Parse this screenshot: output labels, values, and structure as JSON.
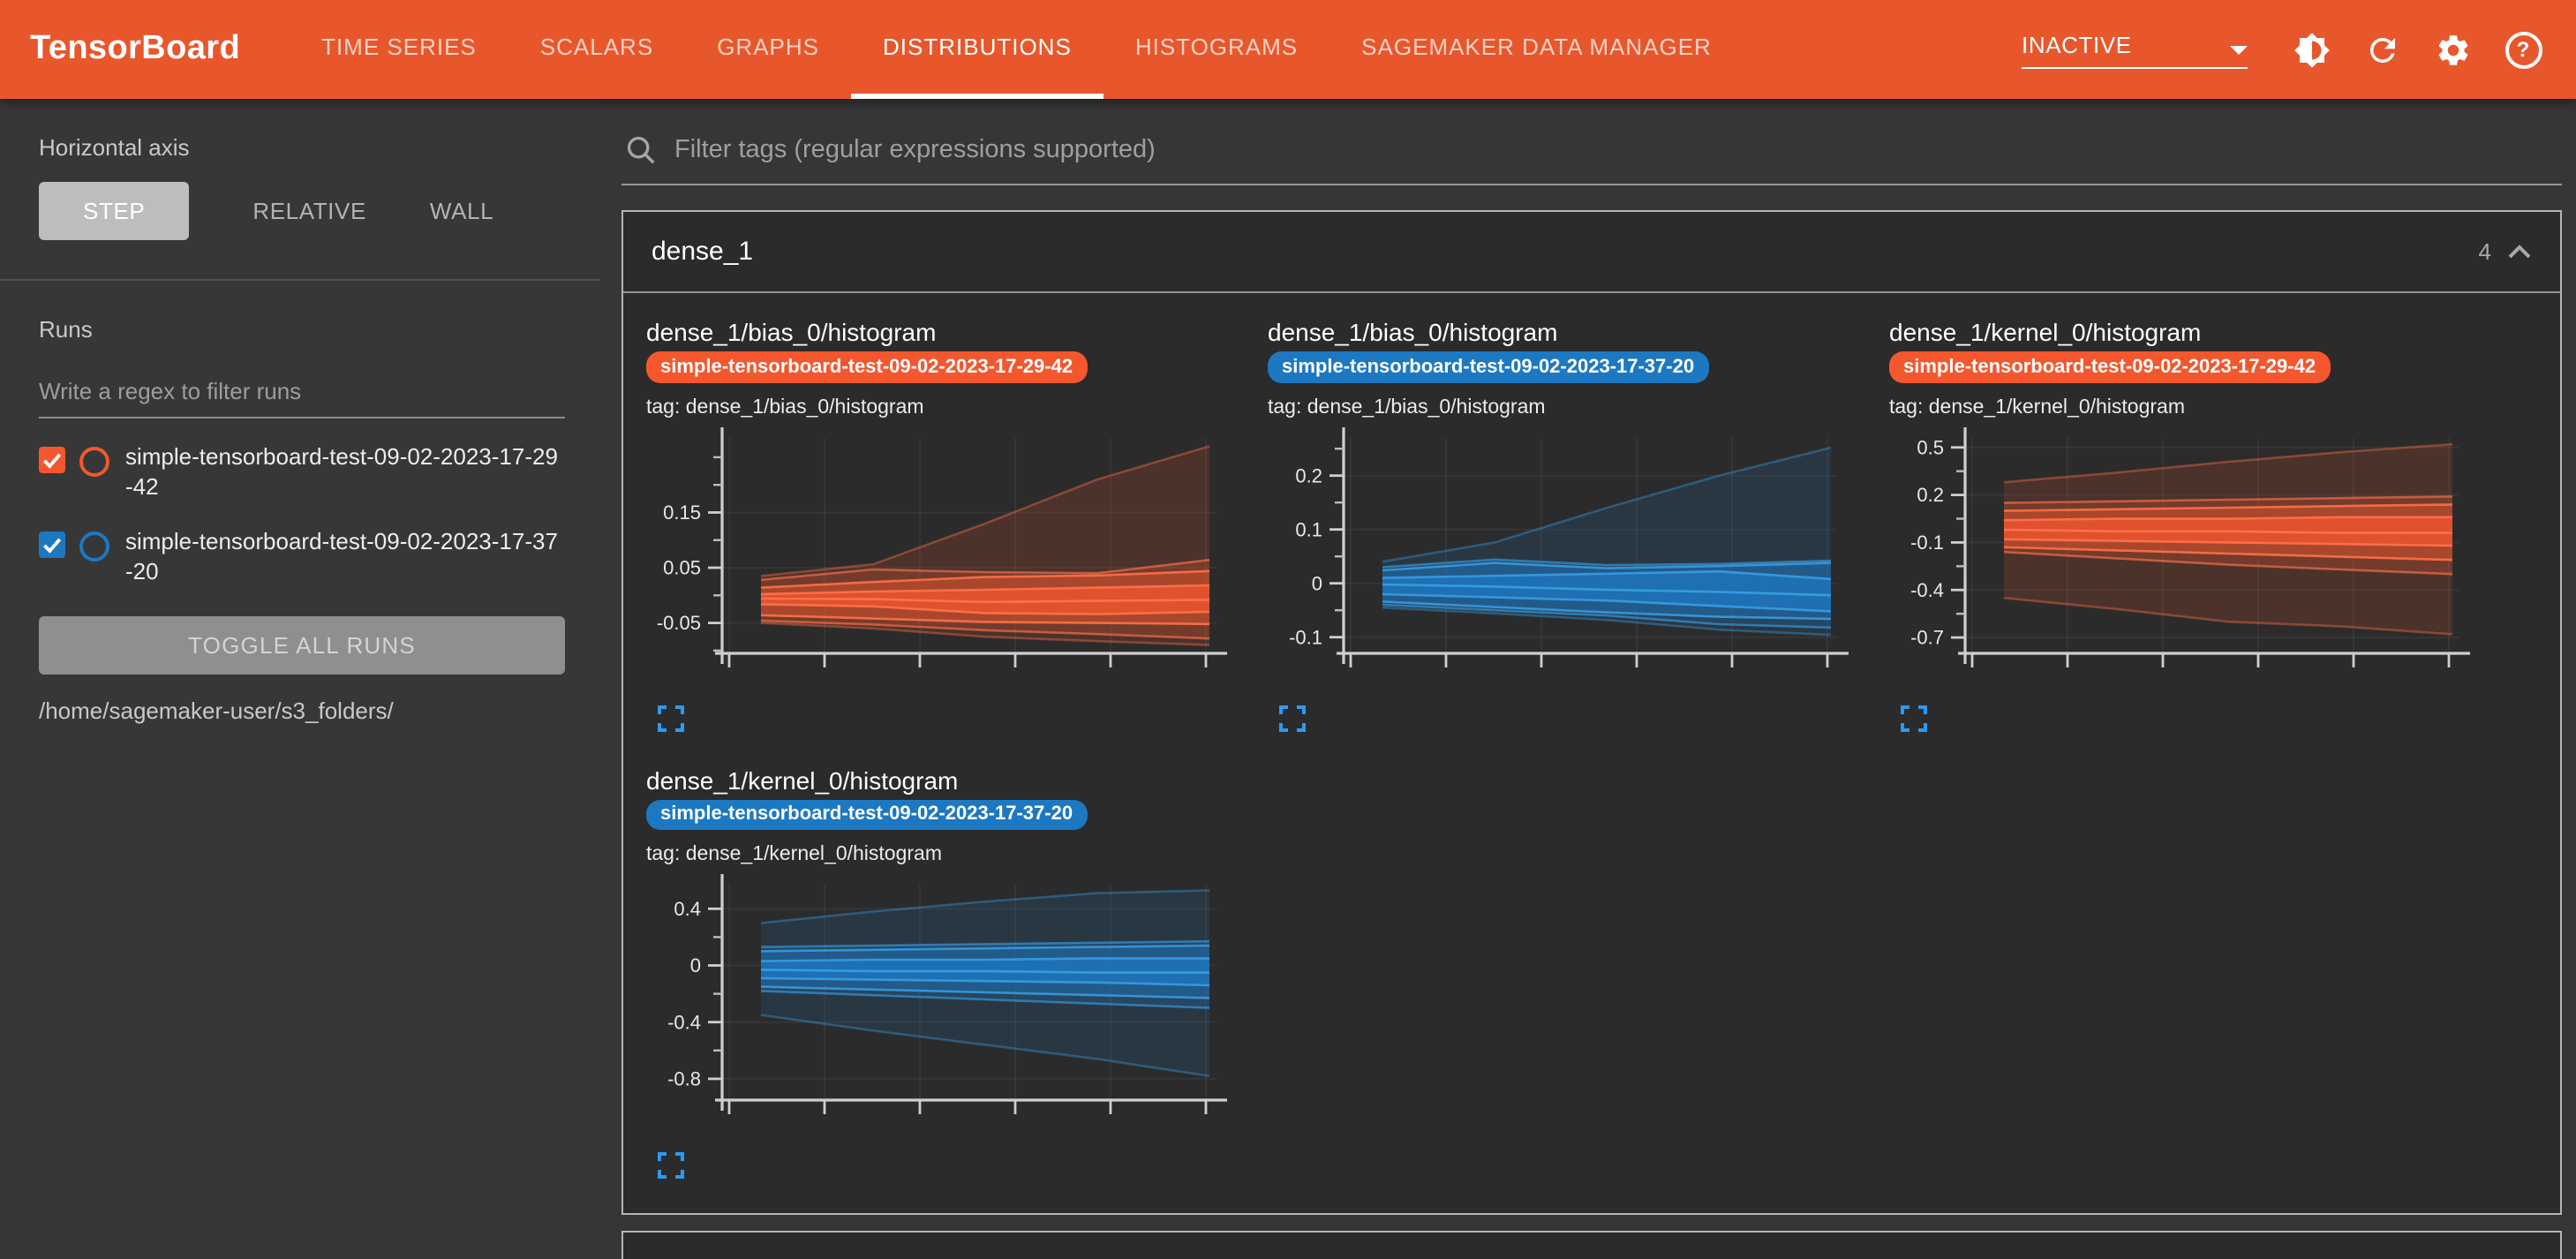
{
  "header": {
    "logo": "TensorBoard",
    "tabs": [
      {
        "label": "TIME SERIES",
        "active": false
      },
      {
        "label": "SCALARS",
        "active": false
      },
      {
        "label": "GRAPHS",
        "active": false
      },
      {
        "label": "DISTRIBUTIONS",
        "active": true
      },
      {
        "label": "HISTOGRAMS",
        "active": false
      },
      {
        "label": "SAGEMAKER DATA MANAGER",
        "active": false
      }
    ],
    "status": "INACTIVE",
    "help_glyph": "?"
  },
  "sidebar": {
    "horizontal_axis": {
      "label": "Horizontal axis",
      "options": [
        "STEP",
        "RELATIVE",
        "WALL"
      ],
      "selected": "STEP"
    },
    "runs": {
      "title": "Runs",
      "filter_placeholder": "Write a regex to filter runs",
      "items": [
        {
          "name": "simple-tensorboard-test-09-02-2023-17-29-42",
          "color": "#f4572e",
          "checked": true
        },
        {
          "name": "simple-tensorboard-test-09-02-2023-17-37-20",
          "color": "#1d78c2",
          "checked": true
        }
      ],
      "toggle_button": "TOGGLE ALL RUNS",
      "log_path": "/home/sagemaker-user/s3_folders/"
    }
  },
  "main": {
    "filter_placeholder": "Filter tags (regular expressions supported)",
    "group": {
      "title": "dense_1",
      "count": "4"
    }
  },
  "colors": {
    "header_orange": "#e8572c",
    "run_orange": "#f4572e",
    "run_blue": "#1d78c2",
    "expand_icon_blue": "#2b9af3"
  },
  "chart_data": [
    {
      "type": "area",
      "title": "dense_1/bias_0/histogram",
      "run": "simple-tensorboard-test-09-02-2023-17-29-42",
      "tag_label": "tag: dense_1/bias_0/histogram",
      "run_color": "#f4572e",
      "line_color": "#ff7048",
      "legend": "none",
      "grid": "faint",
      "x": [
        0,
        1,
        2,
        3,
        4
      ],
      "x_tick_labels": [],
      "ylim": [
        -0.105,
        0.285
      ],
      "yticks_major": [
        [
          0.15,
          "0.15"
        ],
        [
          0.05,
          "0.05"
        ],
        [
          -0.05,
          "-0.05"
        ]
      ],
      "yticks_minor": [
        0.25,
        0.2,
        0.1,
        0,
        -0.1
      ],
      "series": {
        "min": [
          -0.05,
          -0.06,
          -0.075,
          -0.083,
          -0.09
        ],
        "p7": [
          -0.046,
          -0.053,
          -0.063,
          -0.07,
          -0.078
        ],
        "p16": [
          -0.036,
          -0.042,
          -0.048,
          -0.05,
          -0.052
        ],
        "p31": [
          -0.016,
          -0.02,
          -0.032,
          -0.034,
          -0.03
        ],
        "p50": [
          -0.006,
          -0.007,
          -0.012,
          -0.01,
          -0.008
        ],
        "p69": [
          0.002,
          0.007,
          0.01,
          0.014,
          0.018
        ],
        "p84": [
          0.014,
          0.024,
          0.033,
          0.036,
          0.044
        ],
        "p93": [
          0.028,
          0.047,
          0.042,
          0.04,
          0.064
        ],
        "max": [
          0.035,
          0.056,
          0.13,
          0.21,
          0.27
        ]
      }
    },
    {
      "type": "area",
      "title": "dense_1/bias_0/histogram",
      "run": "simple-tensorboard-test-09-02-2023-17-37-20",
      "tag_label": "tag: dense_1/bias_0/histogram",
      "run_color": "#1d78c2",
      "line_color": "#379ae0",
      "legend": "none",
      "grid": "faint",
      "x": [
        0,
        1,
        2,
        3,
        4
      ],
      "x_tick_labels": [],
      "ylim": [
        -0.13,
        0.27
      ],
      "yticks_major": [
        [
          0.2,
          "0.2"
        ],
        [
          0.1,
          "0.1"
        ],
        [
          0,
          "0"
        ],
        [
          -0.1,
          "-0.1"
        ]
      ],
      "yticks_minor": [
        0.25,
        0.15,
        0.05,
        -0.05
      ],
      "series": {
        "min": [
          -0.045,
          -0.056,
          -0.068,
          -0.086,
          -0.096
        ],
        "p7": [
          -0.04,
          -0.05,
          -0.06,
          -0.076,
          -0.082
        ],
        "p16": [
          -0.034,
          -0.044,
          -0.054,
          -0.062,
          -0.066
        ],
        "p31": [
          -0.02,
          -0.026,
          -0.032,
          -0.042,
          -0.052
        ],
        "p50": [
          -0.002,
          -0.006,
          -0.012,
          -0.016,
          -0.022
        ],
        "p69": [
          0.01,
          0.014,
          0.018,
          0.022,
          0.008
        ],
        "p84": [
          0.024,
          0.038,
          0.028,
          0.032,
          0.038
        ],
        "p93": [
          0.03,
          0.044,
          0.034,
          0.036,
          0.042
        ],
        "max": [
          0.04,
          0.076,
          0.14,
          0.2,
          0.252
        ]
      }
    },
    {
      "type": "area",
      "title": "dense_1/kernel_0/histogram",
      "run": "simple-tensorboard-test-09-02-2023-17-29-42",
      "tag_label": "tag: dense_1/kernel_0/histogram",
      "run_color": "#f4572e",
      "line_color": "#ff7048",
      "legend": "none",
      "grid": "faint",
      "x": [
        0,
        1,
        2,
        3,
        4
      ],
      "x_tick_labels": [],
      "ylim": [
        -0.8,
        0.56
      ],
      "yticks_major": [
        [
          0.5,
          "0.5"
        ],
        [
          0.2,
          "0.2"
        ],
        [
          -0.1,
          "-0.1"
        ],
        [
          -0.4,
          "-0.4"
        ],
        [
          -0.7,
          "-0.7"
        ]
      ],
      "yticks_minor": [
        0.35,
        0.05,
        -0.25,
        -0.55
      ],
      "series": {
        "min": [
          -0.45,
          -0.52,
          -0.6,
          -0.63,
          -0.68
        ],
        "p7": [
          -0.16,
          -0.2,
          -0.24,
          -0.27,
          -0.3
        ],
        "p16": [
          -0.13,
          -0.15,
          -0.17,
          -0.19,
          -0.21
        ],
        "p31": [
          -0.08,
          -0.09,
          -0.1,
          -0.11,
          -0.12
        ],
        "p50": [
          -0.02,
          -0.03,
          -0.03,
          -0.04,
          -0.04
        ],
        "p69": [
          0.04,
          0.05,
          0.05,
          0.06,
          0.06
        ],
        "p84": [
          0.1,
          0.11,
          0.12,
          0.13,
          0.14
        ],
        "p93": [
          0.15,
          0.16,
          0.17,
          0.18,
          0.19
        ],
        "max": [
          0.28,
          0.34,
          0.41,
          0.47,
          0.52
        ]
      }
    },
    {
      "type": "area",
      "title": "dense_1/kernel_0/histogram",
      "run": "simple-tensorboard-test-09-02-2023-17-37-20",
      "tag_label": "tag: dense_1/kernel_0/histogram",
      "run_color": "#1d78c2",
      "line_color": "#379ae0",
      "legend": "none",
      "grid": "faint",
      "x": [
        0,
        1,
        2,
        3,
        4
      ],
      "x_tick_labels": [],
      "ylim": [
        -0.95,
        0.57
      ],
      "yticks_major": [
        [
          0.4,
          "0.4"
        ],
        [
          0,
          "0"
        ],
        [
          -0.4,
          "-0.4"
        ],
        [
          -0.8,
          "-0.8"
        ]
      ],
      "yticks_minor": [
        0.2,
        -0.2,
        -0.6
      ],
      "series": {
        "min": [
          -0.35,
          -0.46,
          -0.56,
          -0.66,
          -0.78
        ],
        "p7": [
          -0.18,
          -0.21,
          -0.24,
          -0.27,
          -0.3
        ],
        "p16": [
          -0.15,
          -0.17,
          -0.19,
          -0.21,
          -0.23
        ],
        "p31": [
          -0.09,
          -0.1,
          -0.11,
          -0.12,
          -0.14
        ],
        "p50": [
          -0.03,
          -0.04,
          -0.04,
          -0.05,
          -0.05
        ],
        "p69": [
          0.03,
          0.04,
          0.04,
          0.05,
          0.05
        ],
        "p84": [
          0.1,
          0.11,
          0.12,
          0.13,
          0.14
        ],
        "p93": [
          0.13,
          0.14,
          0.15,
          0.16,
          0.17
        ],
        "max": [
          0.3,
          0.38,
          0.45,
          0.51,
          0.53
        ]
      }
    }
  ]
}
